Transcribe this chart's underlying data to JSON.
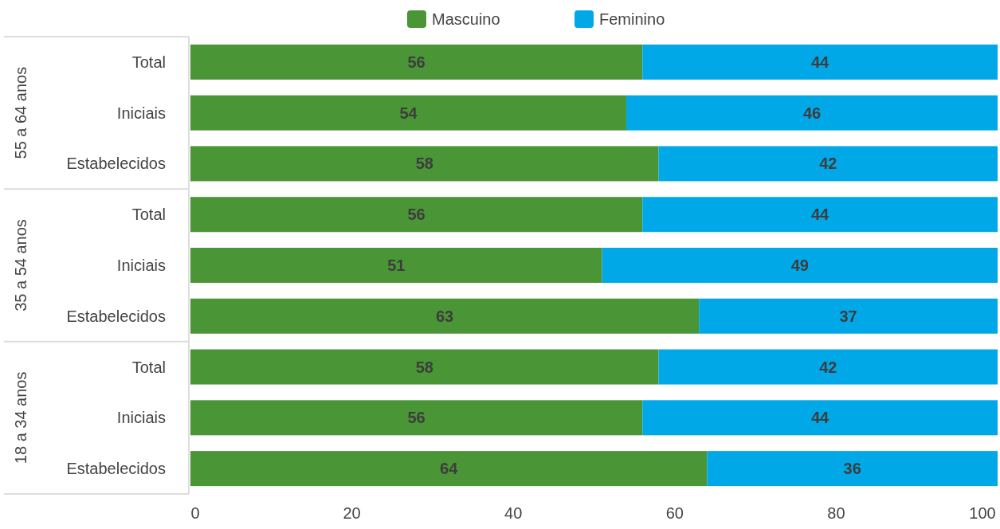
{
  "chart_data": {
    "type": "bar",
    "orientation": "horizontal",
    "stacked": true,
    "data_labels": true,
    "legend": "top",
    "categories": [
      "Total",
      "Iniciais",
      "Estabelecidos",
      "Total",
      "Iniciais",
      "Estabelecidos",
      "Total",
      "Iniciais",
      "Estabelecidos"
    ],
    "series": [
      {
        "name": "Mascuino",
        "color": "#4a9535",
        "values": [
          56,
          54,
          58,
          56,
          51,
          63,
          58,
          56,
          64
        ]
      },
      {
        "name": "Feminino",
        "color": "#00a8e8",
        "values": [
          44,
          46,
          42,
          44,
          49,
          37,
          42,
          44,
          36
        ]
      }
    ],
    "xlim": [
      0,
      100
    ],
    "xticks": [
      0,
      20,
      40,
      60,
      80,
      100
    ],
    "annotations": [
      "55 a 64 anos",
      "35 a 54 anos",
      "18 a 34 anos"
    ]
  }
}
